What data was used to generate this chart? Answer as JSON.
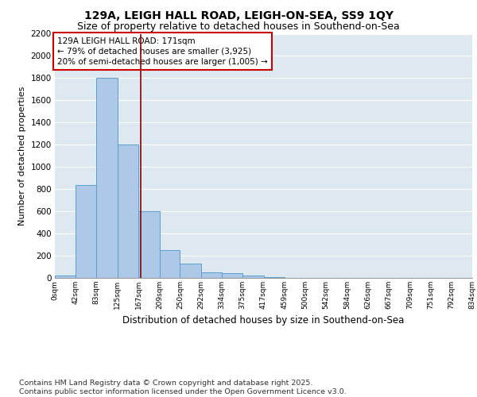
{
  "title1": "129A, LEIGH HALL ROAD, LEIGH-ON-SEA, SS9 1QY",
  "title2": "Size of property relative to detached houses in Southend-on-Sea",
  "xlabel": "Distribution of detached houses by size in Southend-on-Sea",
  "ylabel": "Number of detached properties",
  "bin_edges": [
    0,
    42,
    83,
    125,
    167,
    209,
    250,
    292,
    334,
    375,
    417,
    459,
    500,
    542,
    584,
    626,
    667,
    709,
    751,
    792,
    834
  ],
  "bar_heights": [
    20,
    840,
    1800,
    1200,
    600,
    250,
    130,
    50,
    40,
    20,
    5,
    3,
    2,
    1,
    1,
    0,
    0,
    0,
    0,
    0
  ],
  "bar_color": "#aec9e8",
  "bar_edge_color": "#5a9fd4",
  "property_size": 171,
  "property_line_color": "#8b0000",
  "annotation_text": "129A LEIGH HALL ROAD: 171sqm\n← 79% of detached houses are smaller (3,925)\n20% of semi-detached houses are larger (1,005) →",
  "annotation_box_color": "white",
  "annotation_box_edge_color": "#cc0000",
  "ylim": [
    0,
    2200
  ],
  "yticks": [
    0,
    200,
    400,
    600,
    800,
    1000,
    1200,
    1400,
    1600,
    1800,
    2000,
    2200
  ],
  "background_color": "#dde8f0",
  "grid_color": "white",
  "footer_line1": "Contains HM Land Registry data © Crown copyright and database right 2025.",
  "footer_line2": "Contains public sector information licensed under the Open Government Licence v3.0.",
  "title_fontsize": 10,
  "subtitle_fontsize": 9,
  "annotation_fontsize": 7.5,
  "footer_fontsize": 6.8,
  "ylabel_fontsize": 8,
  "xlabel_fontsize": 8.5
}
